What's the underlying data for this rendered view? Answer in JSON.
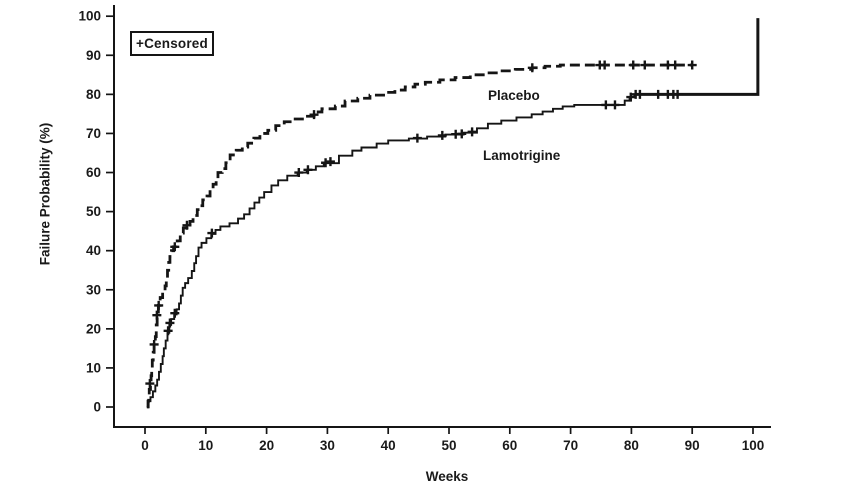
{
  "chart_data": {
    "type": "line",
    "subtype": "kaplan-meier-step",
    "title": "",
    "xlabel": "Weeks",
    "ylabel": "Failure Probability (%)",
    "xlim": [
      0,
      102
    ],
    "ylim": [
      0,
      100
    ],
    "x_ticks": [
      0,
      10,
      20,
      30,
      40,
      50,
      60,
      70,
      80,
      90,
      100
    ],
    "y_ticks": [
      0,
      10,
      20,
      30,
      40,
      50,
      60,
      70,
      80,
      90,
      100
    ],
    "grid": false,
    "axis_color": "#151515",
    "legend": {
      "note": "+Censored",
      "position": "top-left"
    },
    "series": [
      {
        "name": "Placebo",
        "line_style": "dashed",
        "color": "#151515",
        "line_width": 2.8,
        "steps": [
          [
            0.3,
            0
          ],
          [
            0.5,
            1.5
          ],
          [
            0.6,
            3
          ],
          [
            0.7,
            4.5
          ],
          [
            0.9,
            6
          ],
          [
            1.0,
            8
          ],
          [
            1.1,
            10
          ],
          [
            1.2,
            12
          ],
          [
            1.35,
            14
          ],
          [
            1.5,
            16
          ],
          [
            1.7,
            18
          ],
          [
            1.85,
            21
          ],
          [
            2.0,
            23.5
          ],
          [
            2.2,
            26
          ],
          [
            2.5,
            28
          ],
          [
            2.9,
            29.5
          ],
          [
            3.3,
            31
          ],
          [
            3.5,
            33
          ],
          [
            3.7,
            35
          ],
          [
            3.9,
            37
          ],
          [
            4.1,
            38.5
          ],
          [
            4.35,
            40
          ],
          [
            4.7,
            41
          ],
          [
            5.3,
            42.5
          ],
          [
            5.8,
            44.5
          ],
          [
            6.3,
            45.8
          ],
          [
            6.9,
            46.5
          ],
          [
            7.4,
            47.5
          ],
          [
            7.9,
            49
          ],
          [
            8.6,
            50.5
          ],
          [
            9.0,
            51.5
          ],
          [
            9.5,
            53
          ],
          [
            10.2,
            54
          ],
          [
            10.7,
            55.5
          ],
          [
            11.2,
            57
          ],
          [
            11.7,
            58
          ],
          [
            12.0,
            60
          ],
          [
            12.7,
            61
          ],
          [
            13.3,
            62.5
          ],
          [
            14.0,
            64.5
          ],
          [
            15.0,
            65.7
          ],
          [
            16.0,
            66.5
          ],
          [
            16.9,
            67.5
          ],
          [
            17.9,
            68.8
          ],
          [
            18.9,
            70
          ],
          [
            20.2,
            70.8
          ],
          [
            21.5,
            72
          ],
          [
            22.9,
            73
          ],
          [
            24.7,
            73.7
          ],
          [
            26.3,
            74.4
          ],
          [
            27.8,
            75.5
          ],
          [
            29.1,
            76.3
          ],
          [
            31.3,
            77
          ],
          [
            32.9,
            78.3
          ],
          [
            35.0,
            79
          ],
          [
            37.0,
            79.8
          ],
          [
            39.5,
            80.5
          ],
          [
            41.1,
            81.1
          ],
          [
            42.8,
            81.9
          ],
          [
            44.4,
            82.6
          ],
          [
            46.1,
            83.1
          ],
          [
            48.5,
            83.7
          ],
          [
            51.0,
            84.3
          ],
          [
            53.5,
            85
          ],
          [
            55.9,
            85.5
          ],
          [
            58.4,
            86
          ],
          [
            60.9,
            86.4
          ],
          [
            63.7,
            86.8
          ],
          [
            65.8,
            87.2
          ],
          [
            68.3,
            87.5
          ],
          [
            90.0,
            87.5
          ]
        ],
        "censors": [
          [
            0.8,
            6
          ],
          [
            1.5,
            16
          ],
          [
            1.95,
            23.5
          ],
          [
            2.25,
            26
          ],
          [
            4.9,
            41
          ],
          [
            6.9,
            46.5
          ],
          [
            27.8,
            74.8
          ],
          [
            63.7,
            86.8
          ],
          [
            74.8,
            87.5
          ],
          [
            75.6,
            87.5
          ],
          [
            80.3,
            87.5
          ],
          [
            82.2,
            87.5
          ],
          [
            86.0,
            87.5
          ],
          [
            87.2,
            87.5
          ],
          [
            90.0,
            87.5
          ]
        ]
      },
      {
        "name": "Lamotrigine",
        "line_style": "solid",
        "color": "#151515",
        "line_width": 1.9,
        "tail_from": 80.6,
        "tail_width": 3,
        "steps": [
          [
            0.3,
            0
          ],
          [
            0.6,
            1.5
          ],
          [
            0.9,
            2.5
          ],
          [
            1.3,
            4
          ],
          [
            1.7,
            5.5
          ],
          [
            2.0,
            7
          ],
          [
            2.3,
            9
          ],
          [
            2.6,
            11
          ],
          [
            2.9,
            13
          ],
          [
            3.1,
            15
          ],
          [
            3.4,
            17
          ],
          [
            3.7,
            19
          ],
          [
            4.0,
            21
          ],
          [
            4.3,
            22.5
          ],
          [
            4.8,
            23.7
          ],
          [
            5.2,
            25
          ],
          [
            5.6,
            26.5
          ],
          [
            5.9,
            28.5
          ],
          [
            6.2,
            30.5
          ],
          [
            6.6,
            31.7
          ],
          [
            7.1,
            33
          ],
          [
            7.7,
            34.8
          ],
          [
            8.1,
            36.8
          ],
          [
            8.4,
            38.6
          ],
          [
            8.8,
            40.8
          ],
          [
            9.3,
            42
          ],
          [
            10.1,
            43.2
          ],
          [
            10.9,
            44.3
          ],
          [
            11.6,
            45.3
          ],
          [
            12.4,
            46.2
          ],
          [
            13.9,
            47
          ],
          [
            15.3,
            48.2
          ],
          [
            16.3,
            49.3
          ],
          [
            17.2,
            50.8
          ],
          [
            18.0,
            52.3
          ],
          [
            18.8,
            53.6
          ],
          [
            19.6,
            55
          ],
          [
            20.8,
            56.7
          ],
          [
            21.9,
            58
          ],
          [
            23.4,
            59.2
          ],
          [
            25.1,
            60
          ],
          [
            26.6,
            60.7
          ],
          [
            28.1,
            61.6
          ],
          [
            29.4,
            62.4
          ],
          [
            31.9,
            64.3
          ],
          [
            34.1,
            65.6
          ],
          [
            35.6,
            66.4
          ],
          [
            38.1,
            67.4
          ],
          [
            40.0,
            68.2
          ],
          [
            43.4,
            68.7
          ],
          [
            46.4,
            69.2
          ],
          [
            49.4,
            69.7
          ],
          [
            52.4,
            70.2
          ],
          [
            54.6,
            71.3
          ],
          [
            56.4,
            72.5
          ],
          [
            58.6,
            73.3
          ],
          [
            61.1,
            74.1
          ],
          [
            63.6,
            74.9
          ],
          [
            65.4,
            75.6
          ],
          [
            67.1,
            76.3
          ],
          [
            68.7,
            76.9
          ],
          [
            70.6,
            77.3
          ],
          [
            78.9,
            78.4
          ],
          [
            79.7,
            79.3
          ],
          [
            80.5,
            80
          ],
          [
            100.8,
            80
          ],
          [
            100.8,
            99.5
          ]
        ],
        "censors": [
          [
            3.8,
            19.5
          ],
          [
            4.1,
            21.5
          ],
          [
            4.9,
            24
          ],
          [
            11.0,
            44.5
          ],
          [
            25.3,
            60
          ],
          [
            26.8,
            60.7
          ],
          [
            29.7,
            62.5
          ],
          [
            30.5,
            62.8
          ],
          [
            44.8,
            68.8
          ],
          [
            48.9,
            69.5
          ],
          [
            51.1,
            69.8
          ],
          [
            52.1,
            69.9
          ],
          [
            53.8,
            70.4
          ],
          [
            75.8,
            77.3
          ],
          [
            77.3,
            77.3
          ],
          [
            79.9,
            79.3
          ],
          [
            80.7,
            80
          ],
          [
            81.4,
            80
          ],
          [
            84.4,
            80
          ],
          [
            86.0,
            80
          ],
          [
            86.9,
            80
          ],
          [
            87.6,
            80
          ]
        ]
      }
    ]
  }
}
